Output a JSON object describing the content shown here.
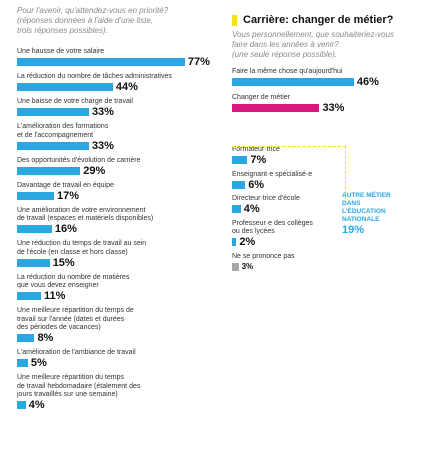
{
  "left": {
    "subtitle": "Pour l'avenir, qu'attendez-vous en priorité?\n(réponses données à l'aide d'une liste,\ntrois réponses possibles).",
    "chart_data": {
      "type": "bar",
      "categories": [
        "Une hausse de votre salaire",
        "La réduction du nombre de tâches administratives",
        "Une baisse de votre charge de travail",
        "L'amélioration des formations\net de l'accompagnement",
        "Des opportunités d'évolution de carrière",
        "Davantage de travail en équipe",
        "Une amélioration de votre environnement\nde travail (espaces et matériels disponibles)",
        "Une réduction du temps de travail au sein\nde l'école (en classe et hors classe)",
        "La réduction du nombre de matières\nque vous devez enseigner",
        "Une meilleure répartition du temps de\ntravail sur l'année (dates et durées\ndes périodes de vacances)",
        "L'amélioration de l'ambiance de travail",
        "Une meilleure répartition du temps\nde travail hebdomadaire (étalement des\njours travaillés sur une semaine)"
      ],
      "values": [
        77,
        44,
        33,
        33,
        29,
        17,
        16,
        15,
        11,
        8,
        5,
        4
      ],
      "labels": [
        "77%",
        "44%",
        "33%",
        "33%",
        "29%",
        "17%",
        "16%",
        "15%",
        "11%",
        "8%",
        "5%",
        "4%"
      ],
      "color": "#2aa6e0"
    }
  },
  "right": {
    "title": "Carrière: changer de métier?",
    "subtitle": "Vous personnellement, que souhaiteriez-vous\nfaire dans les années à venir?\n(une seule réponse possible).",
    "chart_data": {
      "type": "bar",
      "categories": [
        "Faire la même chose qu'aujourd'hui",
        "Changer de métier"
      ],
      "values": [
        46,
        33
      ],
      "labels": [
        "46%",
        "33%"
      ],
      "colors": [
        "#2aa6e0",
        "#d81a7f"
      ]
    },
    "sub_chart_data": {
      "type": "bar",
      "categories": [
        "Formateur·trice",
        "Enseignant·e spécialisé·e",
        "Directeur·trice d'école",
        "Professeur·e des collèges\nou des lycées",
        "Ne se prononce pas"
      ],
      "values": [
        7,
        6,
        4,
        2,
        3
      ],
      "labels": [
        "7%",
        "6%",
        "4%",
        "2%",
        "3%"
      ],
      "colors": [
        "#2aa6e0",
        "#2aa6e0",
        "#2aa6e0",
        "#2aa6e0",
        "#a6a6a6"
      ]
    },
    "callout": {
      "head": "AUTRE MÉTIER\nDANS\nL'ÉDUCATION\nNATIONALE",
      "value": "19%"
    }
  },
  "colors": {
    "accent_blue": "#2aa6e0",
    "accent_magenta": "#d81a7f",
    "title_marker": "#f2e21d",
    "neutral": "#a6a6a6"
  }
}
